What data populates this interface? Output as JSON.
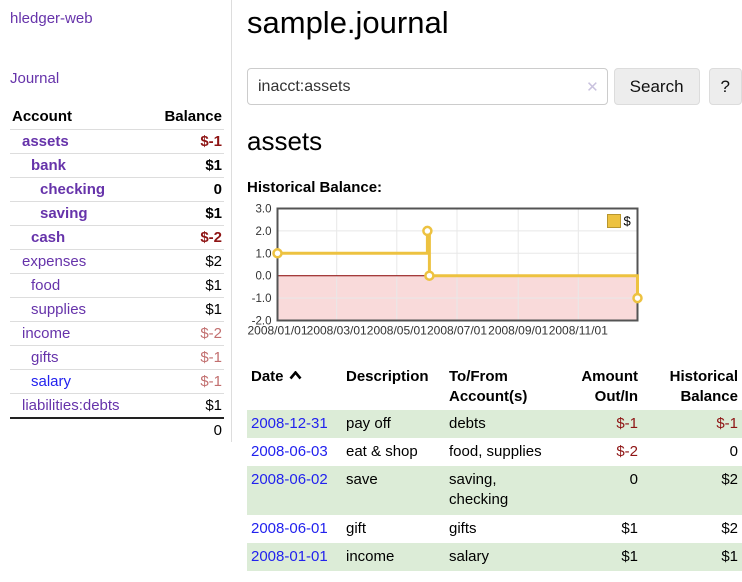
{
  "app": {
    "brand": "hledger-web"
  },
  "sidebar": {
    "nav": {
      "journal_label": "Journal"
    },
    "accounts": {
      "header": {
        "account": "Account",
        "balance": "Balance"
      },
      "rows": [
        {
          "name": "assets",
          "indent": 0,
          "bold": true,
          "link": "visited",
          "balance": "$-1",
          "balance_class": "neg"
        },
        {
          "name": "bank",
          "indent": 1,
          "bold": true,
          "link": "visited",
          "balance": "$1",
          "balance_class": "pos"
        },
        {
          "name": "checking",
          "indent": 2,
          "bold": true,
          "link": "visited",
          "balance": "0",
          "balance_class": "pos"
        },
        {
          "name": "saving",
          "indent": 2,
          "bold": true,
          "link": "visited",
          "balance": "$1",
          "balance_class": "pos"
        },
        {
          "name": "cash",
          "indent": 1,
          "bold": true,
          "link": "visited",
          "balance": "$-2",
          "balance_class": "neg"
        },
        {
          "name": "expenses",
          "indent": 0,
          "bold": false,
          "link": "visited",
          "balance": "$2",
          "balance_class": "pos"
        },
        {
          "name": "food",
          "indent": 1,
          "bold": false,
          "link": "visited",
          "balance": "$1",
          "balance_class": "pos"
        },
        {
          "name": "supplies",
          "indent": 1,
          "bold": false,
          "link": "visited",
          "balance": "$1",
          "balance_class": "pos"
        },
        {
          "name": "income",
          "indent": 0,
          "bold": false,
          "link": "visited",
          "balance": "$-2",
          "balance_class": "negsoft"
        },
        {
          "name": "gifts",
          "indent": 1,
          "bold": false,
          "link": "visited",
          "balance": "$-1",
          "balance_class": "negsoft"
        },
        {
          "name": "salary",
          "indent": 1,
          "bold": false,
          "link": "new",
          "balance": "$-1",
          "balance_class": "negsoft"
        },
        {
          "name": "liabilities:debts",
          "indent": 0,
          "bold": false,
          "link": "visited",
          "balance": "$1",
          "balance_class": "pos"
        }
      ],
      "total": "0"
    }
  },
  "main": {
    "title": "sample.journal",
    "search": {
      "value": "inacct:assets",
      "clear_icon": "✕",
      "button": "Search",
      "help": "?"
    },
    "account_heading": "assets",
    "chart_label": "Historical Balance:"
  },
  "register": {
    "headers": {
      "date": "Date",
      "description": "Description",
      "tofrom_line1": "To/From",
      "tofrom_line2": "Account(s)",
      "amount_line1": "Amount",
      "amount_line2": "Out/In",
      "balance_line1": "Historical",
      "balance_line2": "Balance"
    },
    "rows": [
      {
        "date": "2008-12-31",
        "description": "pay off",
        "accounts": "debts",
        "amount": "$-1",
        "amount_class": "neg",
        "balance": "$-1",
        "balance_class": "neg"
      },
      {
        "date": "2008-06-03",
        "description": "eat & shop",
        "accounts": "food, supplies",
        "amount": "$-2",
        "amount_class": "neg",
        "balance": "0",
        "balance_class": "pos"
      },
      {
        "date": "2008-06-02",
        "description": "save",
        "accounts": "saving, checking",
        "amount": "0",
        "amount_class": "pos",
        "balance": "$2",
        "balance_class": "pos"
      },
      {
        "date": "2008-06-01",
        "description": "gift",
        "accounts": "gifts",
        "amount": "$1",
        "amount_class": "pos",
        "balance": "$2",
        "balance_class": "pos"
      },
      {
        "date": "2008-01-01",
        "description": "income",
        "accounts": "salary",
        "amount": "$1",
        "amount_class": "pos",
        "balance": "$1",
        "balance_class": "pos"
      }
    ]
  },
  "chart_data": {
    "type": "line",
    "step": true,
    "title": "Historical Balance",
    "series": [
      {
        "name": "$",
        "color": "#edc240",
        "points": [
          {
            "date": "2008-01-01",
            "day": 0,
            "value": 1
          },
          {
            "date": "2008-06-01",
            "day": 152,
            "value": 2
          },
          {
            "date": "2008-06-03",
            "day": 154,
            "value": 0
          },
          {
            "date": "2008-12-31",
            "day": 365,
            "value": -1
          }
        ]
      }
    ],
    "x_ticks": [
      {
        "label": "2008/01/01",
        "day": 0
      },
      {
        "label": "2008/03/01",
        "day": 60
      },
      {
        "label": "2008/05/01",
        "day": 121
      },
      {
        "label": "2008/07/01",
        "day": 182
      },
      {
        "label": "2008/09/01",
        "day": 244
      },
      {
        "label": "2008/11/01",
        "day": 305
      }
    ],
    "y_ticks": [
      "3.0",
      "2.0",
      "1.0",
      "0.0",
      "-1.0",
      "-2.0"
    ],
    "ylim": [
      -2,
      3
    ],
    "xlim_days": [
      0,
      365
    ],
    "grid": true,
    "legend": {
      "position": "top-right",
      "items": [
        {
          "label": "$",
          "color": "#edc240"
        }
      ]
    },
    "colors": {
      "negative_region_fill": "#f9dada",
      "zero_line": "#8b0000",
      "grid_line": "#e8e8e8",
      "border": "#545454",
      "marker_fill": "#ffffff"
    }
  },
  "colors": {
    "link_visited": "#6633aa",
    "link_new": "#2222ee",
    "negative_strong": "#8e1414",
    "negative_soft": "#c26f6f",
    "row_stripe_green": "#dcecd7",
    "accent_gold": "#edc240"
  }
}
